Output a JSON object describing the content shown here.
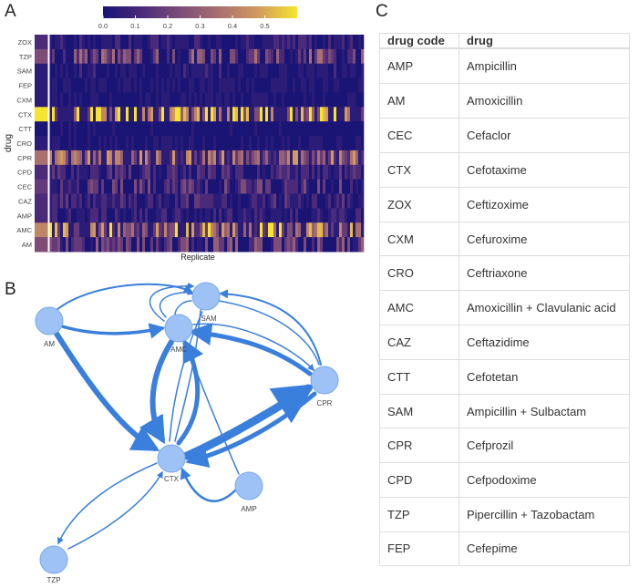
{
  "panels": {
    "a": "A",
    "b": "B",
    "c": "C"
  },
  "heatmap": {
    "ylabel": "drug",
    "xlabel": "Replicate",
    "drugs": [
      "ZOX",
      "TZP",
      "SAM",
      "FEP",
      "CXM",
      "CTX",
      "CTT",
      "CRO",
      "CPR",
      "CPD",
      "CEC",
      "CAZ",
      "AMP",
      "AMC",
      "AM"
    ],
    "row_levels": [
      0.08,
      0.22,
      0.06,
      0.05,
      0.04,
      0.52,
      0.02,
      0.04,
      0.3,
      0.12,
      0.16,
      0.1,
      0.08,
      0.36,
      0.18
    ],
    "colorbar_ticks": [
      "0.0",
      "0.1",
      "0.2",
      "0.3",
      "0.4",
      "0.5"
    ],
    "colorbar_range": [
      0,
      0.6
    ],
    "palette": [
      "#1a1575",
      "#4b2a7a",
      "#7d4d78",
      "#a9706f",
      "#d29a5c",
      "#f5e52e"
    ]
  },
  "network": {
    "nodes": [
      "SAM",
      "AM",
      "AMC",
      "CPR",
      "CTX",
      "AMP",
      "TZP"
    ],
    "edge_color": "#3a7fdc",
    "node_color": "#9ec2f5"
  },
  "table": {
    "headers": [
      "drug code",
      "drug"
    ],
    "rows": [
      {
        "code": "AMP",
        "drug": "Ampicillin"
      },
      {
        "code": "AM",
        "drug": "Amoxicillin"
      },
      {
        "code": "CEC",
        "drug": "Cefaclor"
      },
      {
        "code": "CTX",
        "drug": "Cefotaxime"
      },
      {
        "code": "ZOX",
        "drug": "Ceftizoxime"
      },
      {
        "code": "CXM",
        "drug": "Cefuroxime"
      },
      {
        "code": "CRO",
        "drug": "Ceftriaxone"
      },
      {
        "code": "AMC",
        "drug": "Amoxicillin + Clavulanic acid"
      },
      {
        "code": "CAZ",
        "drug": "Ceftazidime"
      },
      {
        "code": "CTT",
        "drug": "Cefotetan"
      },
      {
        "code": "SAM",
        "drug": "Ampicillin + Sulbactam"
      },
      {
        "code": "CPR",
        "drug": "Cefprozil"
      },
      {
        "code": "CPD",
        "drug": "Cefpodoxime"
      },
      {
        "code": "TZP",
        "drug": "Pipercillin + Tazobactam"
      },
      {
        "code": "FEP",
        "drug": "Cefepime"
      }
    ]
  }
}
